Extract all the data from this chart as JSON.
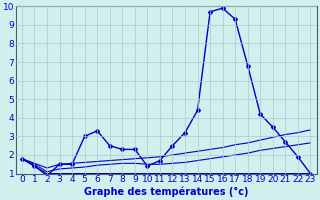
{
  "xlabel": "Graphe des températures (°c)",
  "x_values": [
    0,
    1,
    2,
    3,
    4,
    5,
    6,
    7,
    8,
    9,
    10,
    11,
    12,
    13,
    14,
    15,
    16,
    17,
    18,
    19,
    20,
    21,
    22,
    23
  ],
  "main_line": [
    1.8,
    1.4,
    0.9,
    1.5,
    1.5,
    3.0,
    3.3,
    2.5,
    2.3,
    2.3,
    1.4,
    1.7,
    2.5,
    3.2,
    4.4,
    9.7,
    9.9,
    9.3,
    6.8,
    4.2,
    3.5,
    2.7,
    1.9,
    1.0
  ],
  "line2": [
    1.8,
    1.55,
    1.3,
    1.5,
    1.55,
    1.6,
    1.65,
    1.7,
    1.75,
    1.8,
    1.85,
    1.9,
    2.0,
    2.1,
    2.2,
    2.3,
    2.4,
    2.55,
    2.65,
    2.8,
    2.95,
    3.1,
    3.2,
    3.35
  ],
  "line3": [
    1.8,
    1.5,
    1.1,
    1.25,
    1.3,
    1.35,
    1.45,
    1.5,
    1.55,
    1.55,
    1.5,
    1.5,
    1.55,
    1.6,
    1.7,
    1.8,
    1.9,
    2.0,
    2.1,
    2.25,
    2.35,
    2.45,
    2.55,
    2.65
  ],
  "line4": [
    1.8,
    1.4,
    1.0,
    1.0,
    1.0,
    1.0,
    1.0,
    1.0,
    1.0,
    1.0,
    1.0,
    1.0,
    1.0,
    1.0,
    1.0,
    1.0,
    1.0,
    1.0,
    1.0,
    1.0,
    1.0,
    1.0,
    1.0,
    1.0
  ],
  "bg_color": "#cff0ec",
  "line_color": "#0000cc",
  "grid_color": "#aacccc",
  "ylim": [
    1,
    10
  ],
  "yticks": [
    1,
    2,
    3,
    4,
    5,
    6,
    7,
    8,
    9,
    10
  ],
  "xticks": [
    0,
    1,
    2,
    3,
    4,
    5,
    6,
    7,
    8,
    9,
    10,
    11,
    12,
    13,
    14,
    15,
    16,
    17,
    18,
    19,
    20,
    21,
    22,
    23
  ],
  "xlabel_fontsize": 7,
  "tick_fontsize": 6.5,
  "marker": "D",
  "markersize": 2.0
}
